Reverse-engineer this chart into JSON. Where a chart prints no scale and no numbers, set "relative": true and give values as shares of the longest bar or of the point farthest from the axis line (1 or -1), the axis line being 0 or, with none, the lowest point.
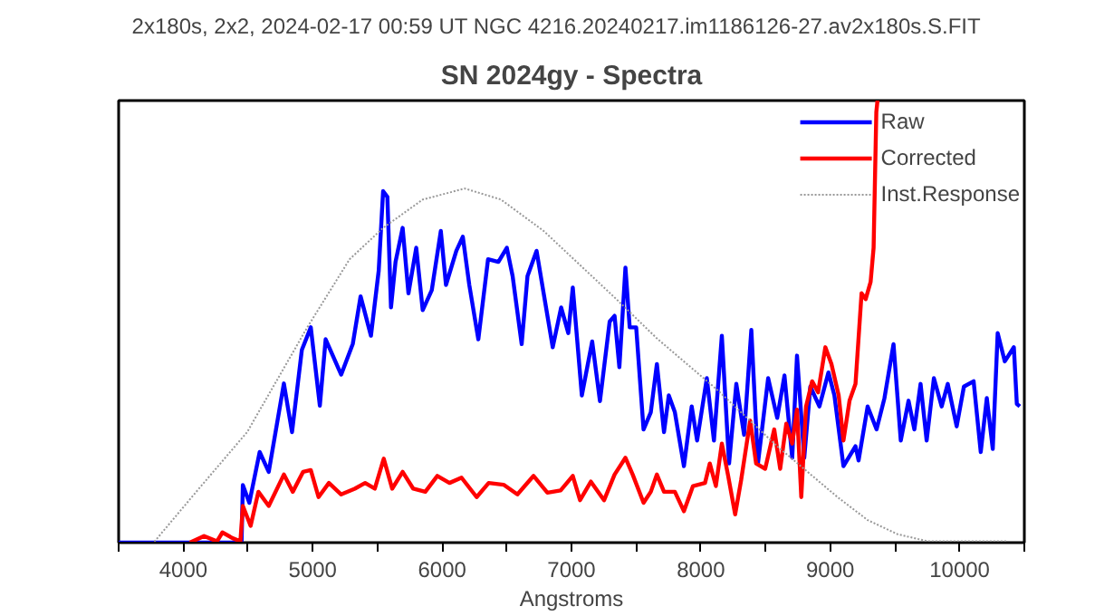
{
  "chart_data": {
    "type": "line",
    "title": "SN 2024gy - Spectra",
    "subtitle": "2x180s, 2x2, 2024-02-17 00:59 UT      NGC 4216.20240217.im1186126-27.av2x180s.S.FIT",
    "xlabel": "Angstroms",
    "relative": true,
    "tick_labels": "x",
    "legend": "top right",
    "grid": false,
    "xlim": [
      3500,
      10500
    ],
    "xticks": [
      {
        "value": 3500,
        "label": null
      },
      4000,
      {
        "value": 4500,
        "label": null
      },
      5000,
      {
        "value": 5500,
        "label": null
      },
      6000,
      {
        "value": 6500,
        "label": null
      },
      7000,
      {
        "value": 7500,
        "label": null
      },
      8000,
      {
        "value": 8500,
        "label": null
      },
      9000,
      {
        "value": 9500,
        "label": null
      },
      10000,
      {
        "value": 10500,
        "label": null
      }
    ],
    "series": [
      {
        "name": "Raw",
        "color": "#0000ff",
        "line_style": "solid",
        "x": [
          3500,
          4450,
          4460,
          4510,
          4590,
          4660,
          4777,
          4840,
          4916,
          4985,
          5055,
          5100,
          5220,
          5310,
          5370,
          5450,
          5510,
          5544,
          5577,
          5605,
          5640,
          5695,
          5740,
          5800,
          5850,
          5920,
          5990,
          6030,
          6110,
          6160,
          6210,
          6280,
          6355,
          6435,
          6500,
          6545,
          6615,
          6660,
          6730,
          6785,
          6855,
          6920,
          6975,
          7010,
          7080,
          7160,
          7220,
          7295,
          7333,
          7370,
          7417,
          7450,
          7500,
          7557,
          7613,
          7660,
          7715,
          7752,
          7799,
          7869,
          7929,
          7971,
          8046,
          8101,
          8162,
          8218,
          8274,
          8334,
          8390,
          8441,
          8520,
          8590,
          8646,
          8706,
          8743,
          8799,
          8846,
          8916,
          8986,
          9032,
          9102,
          9195,
          9219,
          9289,
          9358,
          9419,
          9489,
          9545,
          9605,
          9650,
          9698,
          9745,
          9801,
          9861,
          9908,
          9977,
          10033,
          10108,
          10163,
          10210,
          10256,
          10294,
          10349,
          10419,
          10442,
          10465
        ],
        "values": [
          0,
          0,
          0.13,
          0.09,
          0.205,
          0.16,
          0.36,
          0.25,
          0.436,
          0.487,
          0.31,
          0.46,
          0.38,
          0.45,
          0.557,
          0.468,
          0.615,
          0.795,
          0.782,
          0.532,
          0.635,
          0.712,
          0.564,
          0.667,
          0.526,
          0.571,
          0.705,
          0.583,
          0.66,
          0.692,
          0.583,
          0.46,
          0.641,
          0.635,
          0.667,
          0.603,
          0.449,
          0.603,
          0.66,
          0.564,
          0.442,
          0.532,
          0.474,
          0.577,
          0.333,
          0.455,
          0.32,
          0.5,
          0.513,
          0.397,
          0.622,
          0.487,
          0.487,
          0.256,
          0.295,
          0.404,
          0.25,
          0.333,
          0.295,
          0.173,
          0.308,
          0.231,
          0.372,
          0.231,
          0.468,
          0.179,
          0.359,
          0.244,
          0.481,
          0.179,
          0.372,
          0.282,
          0.378,
          0.192,
          0.423,
          0.192,
          0.353,
          0.308,
          0.385,
          0.333,
          0.173,
          0.218,
          0.186,
          0.308,
          0.256,
          0.327,
          0.449,
          0.231,
          0.321,
          0.256,
          0.359,
          0.231,
          0.372,
          0.308,
          0.359,
          0.263,
          0.353,
          0.365,
          0.205,
          0.327,
          0.212,
          0.474,
          0.41,
          0.442,
          0.314,
          0.308
        ]
      },
      {
        "name": "Corrected",
        "color": "#ff0000",
        "line_style": "solid",
        "x": [
          4050,
          4160,
          4260,
          4302,
          4381,
          4441,
          4460,
          4520,
          4580,
          4660,
          4777,
          4846,
          4925,
          4985,
          5045,
          5125,
          5220,
          5325,
          5405,
          5480,
          5549,
          5614,
          5695,
          5777,
          5870,
          5963,
          6057,
          6150,
          6267,
          6360,
          6475,
          6582,
          6707,
          6814,
          6916,
          7010,
          7066,
          7150,
          7252,
          7333,
          7417,
          7473,
          7557,
          7613,
          7660,
          7715,
          7799,
          7869,
          7939,
          8032,
          8069,
          8116,
          8162,
          8209,
          8265,
          8311,
          8381,
          8427,
          8497,
          8567,
          8613,
          8660,
          8706,
          8743,
          8776,
          8813,
          8860,
          8906,
          8962,
          9009,
          9065,
          9102,
          9149,
          9195,
          9242,
          9274,
          9312,
          9335,
          9356,
          9365
        ],
        "values": [
          0,
          0.015,
          0.003,
          0.023,
          0.01,
          0.003,
          0.083,
          0.038,
          0.115,
          0.083,
          0.154,
          0.115,
          0.16,
          0.164,
          0.103,
          0.135,
          0.109,
          0.122,
          0.135,
          0.122,
          0.19,
          0.122,
          0.16,
          0.122,
          0.115,
          0.151,
          0.135,
          0.147,
          0.103,
          0.135,
          0.131,
          0.109,
          0.151,
          0.113,
          0.118,
          0.151,
          0.096,
          0.138,
          0.096,
          0.154,
          0.192,
          0.154,
          0.09,
          0.115,
          0.154,
          0.115,
          0.115,
          0.071,
          0.128,
          0.135,
          0.179,
          0.128,
          0.224,
          0.154,
          0.064,
          0.141,
          0.276,
          0.179,
          0.167,
          0.256,
          0.167,
          0.269,
          0.224,
          0.301,
          0.103,
          0.308,
          0.365,
          0.34,
          0.442,
          0.404,
          0.333,
          0.231,
          0.321,
          0.359,
          0.564,
          0.551,
          0.59,
          0.667,
          0.974,
          1.0
        ]
      },
      {
        "name": "Inst.Response",
        "color": "#999999",
        "line_style": "dashed",
        "x": [
          3500,
          3770,
          4120,
          4493,
          4958,
          5285,
          5544,
          5850,
          6175,
          6455,
          6785,
          7113,
          7346,
          7660,
          8125,
          8590,
          9056,
          9289,
          9521,
          9754,
          10360
        ],
        "values": [
          0,
          0,
          0.122,
          0.25,
          0.487,
          0.641,
          0.712,
          0.776,
          0.801,
          0.776,
          0.705,
          0.615,
          0.551,
          0.462,
          0.346,
          0.218,
          0.103,
          0.051,
          0.019,
          0.003,
          0.003
        ]
      }
    ]
  }
}
